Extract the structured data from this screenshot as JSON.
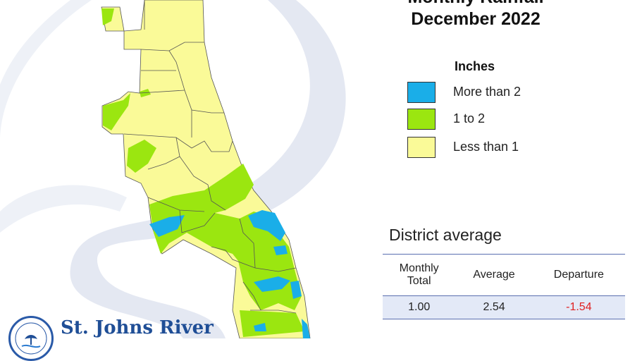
{
  "title": {
    "line1": "Monthly Rainfall",
    "line2": "December 2022"
  },
  "legend": {
    "title": "Inches",
    "items": [
      {
        "label": "More than 2",
        "color": "#1aaee8"
      },
      {
        "label": "1 to 2",
        "color": "#9be610"
      },
      {
        "label": "Less than 1",
        "color": "#fafa98"
      }
    ]
  },
  "district_average": {
    "title": "District average",
    "headers": [
      "Monthly\nTotal",
      "Average",
      "Departure"
    ],
    "row": {
      "monthly_total": "1.00",
      "average": "2.54",
      "departure": "-1.54"
    },
    "departure_color": "#e02020"
  },
  "logo": {
    "name": "St. Johns River",
    "seal_text": "ST. JOHNS RIVER",
    "color": "#1f4e96"
  },
  "colors": {
    "background_swirl": "#e4e8f2",
    "county_border": "#555555",
    "table_row": "#e3e9f7",
    "table_rule": "#5a6fb0"
  }
}
